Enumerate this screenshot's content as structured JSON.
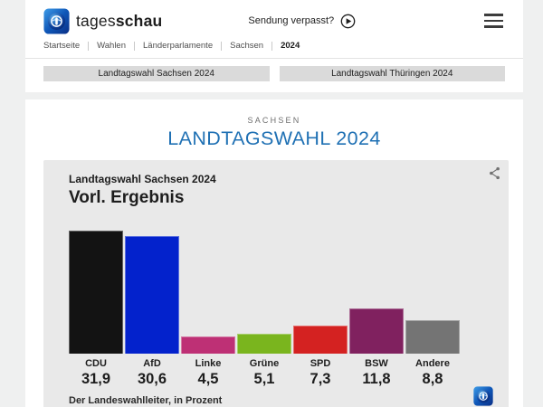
{
  "header": {
    "brand_regular": "tages",
    "brand_bold": "schau",
    "sendung_verpasst": "Sendung verpasst?"
  },
  "breadcrumb": {
    "items": [
      "Startseite",
      "Wahlen",
      "Länderparlamente",
      "Sachsen",
      "2024"
    ]
  },
  "tabs": {
    "items": [
      "Landtagswahl Sachsen 2024",
      "Landtagswahl Thüringen 2024"
    ]
  },
  "main": {
    "kicker": "SACHSEN",
    "title": "LANDTAGSWAHL 2024"
  },
  "chart": {
    "title": "Landtagswahl Sachsen 2024",
    "subtitle": "Vorl. Ergebnis",
    "source": "Der Landeswahlleiter, in Prozent"
  },
  "chart_data": {
    "type": "bar",
    "title": "Landtagswahl Sachsen 2024 – Vorl. Ergebnis",
    "categories": [
      "CDU",
      "AfD",
      "Linke",
      "Grüne",
      "SPD",
      "BSW",
      "Andere"
    ],
    "values": [
      31.9,
      30.6,
      4.5,
      5.1,
      7.3,
      11.8,
      8.8
    ],
    "value_labels": [
      "31,9",
      "30,6",
      "4,5",
      "5,1",
      "7,3",
      "11,8",
      "8,8"
    ],
    "colors": [
      "#131313",
      "#0322cc",
      "#be3075",
      "#7ab51e",
      "#d42221",
      "#80215f",
      "#747474"
    ],
    "xlabel": "",
    "ylabel": "Prozent",
    "ylim": [
      0,
      32
    ],
    "unit": "Prozent",
    "source": "Der Landeswahlleiter",
    "grid": false,
    "legend": "none"
  },
  "colors": {
    "accent_blue": "#2071b4",
    "page_bg": "#eff0f0",
    "panel_bg": "#e9e9e9"
  }
}
